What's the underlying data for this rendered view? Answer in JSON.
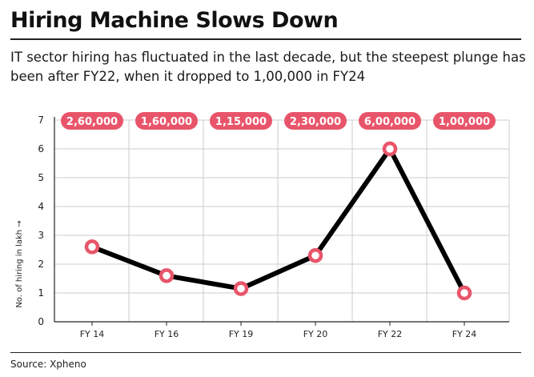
{
  "header": {
    "title": "Hiring Machine Slows Down",
    "subtitle": "IT sector hiring has fluctuated in the last decade, but the steepest plunge has been after FY22, when it dropped to 1,00,000 in FY24"
  },
  "footer": {
    "source": "Source: Xpheno"
  },
  "colors": {
    "line": "#000000",
    "marker": "#e8556a",
    "badge": "#e8556a",
    "grid": "#cccccc"
  },
  "chart_data": {
    "type": "line",
    "title": "Hiring Machine Slows Down",
    "xlabel": "",
    "ylabel": "No. of hiring in lakh →",
    "ylim": [
      0,
      7
    ],
    "yticks": [
      "0",
      "1",
      "2",
      "3",
      "4",
      "5",
      "6",
      "7"
    ],
    "categories": [
      "FY 14",
      "FY 16",
      "FY 19",
      "FY 20",
      "FY 22",
      "FY 24"
    ],
    "values": [
      2.6,
      1.6,
      1.15,
      2.3,
      6.0,
      1.0
    ],
    "data_labels": [
      "2,60,000",
      "1,60,000",
      "1,15,000",
      "2,30,000",
      "6,00,000",
      "1,00,000"
    ],
    "grid": true,
    "legend": "none"
  }
}
